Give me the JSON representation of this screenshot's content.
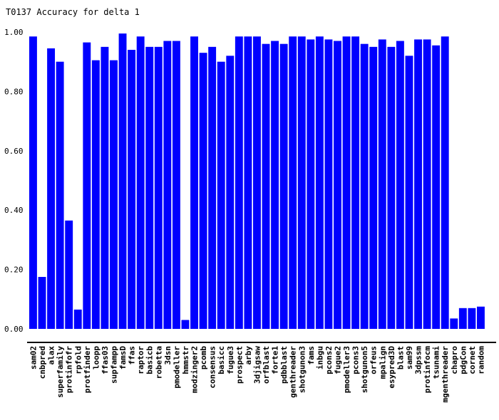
{
  "chart_data": {
    "type": "bar",
    "title": "T0137 Accuracy for delta 1",
    "xlabel": "",
    "ylabel": "",
    "ylim": [
      0,
      1.0
    ],
    "yticks": [
      "0.00",
      "0.20",
      "0.40",
      "0.60",
      "0.80",
      "1.00"
    ],
    "bar_color": "#0000ff",
    "grid": false,
    "categories": [
      "sam02",
      "cnbpred",
      "alax",
      "superfamily",
      "protinfofr",
      "rpfold",
      "protfinder",
      "loopp",
      "ffas03",
      "supfampp",
      "famsD",
      "ffas",
      "raptor",
      "basicb",
      "robetta",
      "3dsn",
      "pmodeller",
      "hmmstr",
      "modzinger2",
      "pcomb",
      "consensus",
      "basicc",
      "fugue3",
      "prospect",
      "arby",
      "3djigsaw",
      "orfblast",
      "forte1",
      "pdbblast",
      "genthreader",
      "shotgunon3",
      "fams",
      "inbgu",
      "pcons2",
      "fugue2",
      "pmodeller3",
      "pcons3",
      "shotgunon5",
      "orfeus",
      "mpalign",
      "esypred3D",
      "blast",
      "sam99",
      "3dpssm",
      "protinfocm",
      "tsunami",
      "mgenthreader",
      "chapro",
      "pdgCon",
      "cornet",
      "random"
    ],
    "values": [
      0.985,
      0.175,
      0.945,
      0.9,
      0.365,
      0.065,
      0.965,
      0.905,
      0.95,
      0.905,
      0.995,
      0.94,
      0.985,
      0.95,
      0.95,
      0.97,
      0.97,
      0.03,
      0.985,
      0.93,
      0.95,
      0.9,
      0.92,
      0.985,
      0.985,
      0.985,
      0.96,
      0.97,
      0.96,
      0.985,
      0.985,
      0.975,
      0.985,
      0.975,
      0.97,
      0.985,
      0.985,
      0.96,
      0.95,
      0.975,
      0.95,
      0.97,
      0.92,
      0.975,
      0.975,
      0.955,
      0.985,
      0.035,
      0.07,
      0.07,
      0.075
    ]
  }
}
